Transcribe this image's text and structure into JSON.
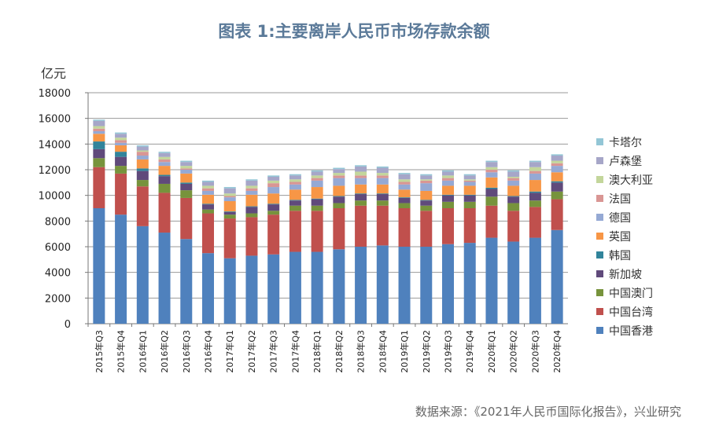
{
  "chart_data": {
    "type": "bar",
    "stacked": true,
    "title": "图表 1:主要离岸人民币市场存款余额",
    "ylabel": "亿元",
    "ylim": [
      0,
      18000
    ],
    "yticks": [
      0,
      2000,
      4000,
      6000,
      8000,
      10000,
      12000,
      14000,
      16000,
      18000
    ],
    "grid": true,
    "legend_position": "right",
    "categories": [
      "2015年Q3",
      "2015年Q4",
      "2016年Q1",
      "2016年Q2",
      "2016年Q3",
      "2016年Q4",
      "2017年Q1",
      "2017年Q2",
      "2017年Q3",
      "2017年Q4",
      "2018年Q1",
      "2018年Q2",
      "2018年Q3",
      "2018年Q4",
      "2019年Q1",
      "2019年Q2",
      "2019年Q3",
      "2019年Q4",
      "2020年Q1",
      "2020年Q2",
      "2020年Q3",
      "2020年Q4"
    ],
    "series": [
      {
        "name": "中国香港",
        "color": "#4f81bd",
        "values": [
          9000,
          8500,
          7600,
          7100,
          6600,
          5500,
          5100,
          5300,
          5400,
          5600,
          5600,
          5800,
          6000,
          6100,
          6000,
          6000,
          6200,
          6300,
          6700,
          6400,
          6700,
          7300
        ]
      },
      {
        "name": "中国台湾",
        "color": "#c0504d",
        "values": [
          3200,
          3200,
          3100,
          3100,
          3200,
          3100,
          3100,
          3000,
          3100,
          3200,
          3200,
          3200,
          3200,
          3100,
          3000,
          2800,
          2800,
          2700,
          2500,
          2400,
          2400,
          2400
        ]
      },
      {
        "name": "中国澳门",
        "color": "#77933c",
        "values": [
          700,
          600,
          500,
          700,
          600,
          300,
          300,
          300,
          300,
          400,
          400,
          400,
          400,
          400,
          400,
          400,
          500,
          500,
          700,
          600,
          500,
          600
        ]
      },
      {
        "name": "新加坡",
        "color": "#604a7b",
        "values": [
          700,
          700,
          700,
          600,
          500,
          400,
          200,
          500,
          500,
          400,
          500,
          500,
          500,
          500,
          400,
          400,
          500,
          500,
          600,
          500,
          600,
          700
        ]
      },
      {
        "name": "韩国",
        "color": "#31849b",
        "values": [
          600,
          400,
          200,
          100,
          100,
          50,
          50,
          50,
          50,
          50,
          50,
          50,
          50,
          50,
          50,
          50,
          50,
          50,
          100,
          50,
          100,
          100
        ]
      },
      {
        "name": "英国",
        "color": "#f79646",
        "values": [
          600,
          500,
          700,
          700,
          700,
          700,
          800,
          900,
          800,
          800,
          900,
          800,
          700,
          700,
          600,
          700,
          700,
          700,
          800,
          800,
          900,
          700
        ]
      },
      {
        "name": "德国",
        "color": "#95a9d4",
        "values": [
          200,
          200,
          300,
          300,
          300,
          300,
          300,
          300,
          500,
          400,
          500,
          600,
          500,
          500,
          400,
          600,
          400,
          300,
          400,
          400,
          500,
          500
        ]
      },
      {
        "name": "法国",
        "color": "#d99694",
        "values": [
          200,
          200,
          300,
          200,
          100,
          200,
          100,
          200,
          300,
          200,
          200,
          200,
          200,
          200,
          200,
          200,
          200,
          100,
          200,
          200,
          200,
          200
        ]
      },
      {
        "name": "澳大利亚",
        "color": "#c3d69b",
        "values": [
          200,
          200,
          100,
          200,
          200,
          200,
          200,
          200,
          200,
          200,
          200,
          200,
          300,
          200,
          200,
          100,
          200,
          100,
          200,
          100,
          300,
          200
        ]
      },
      {
        "name": "卢森堡",
        "color": "#a6a6c8",
        "values": [
          400,
          300,
          300,
          300,
          300,
          300,
          400,
          400,
          300,
          300,
          300,
          300,
          400,
          400,
          400,
          300,
          300,
          300,
          400,
          400,
          400,
          400
        ]
      },
      {
        "name": "卡塔尔",
        "color": "#93c6d6",
        "values": [
          100,
          100,
          100,
          100,
          100,
          100,
          100,
          100,
          100,
          100,
          100,
          100,
          100,
          100,
          100,
          100,
          100,
          100,
          100,
          100,
          100,
          100
        ]
      }
    ]
  },
  "source": "数据来源：《2021年人民币国际化报告》，兴业研究"
}
